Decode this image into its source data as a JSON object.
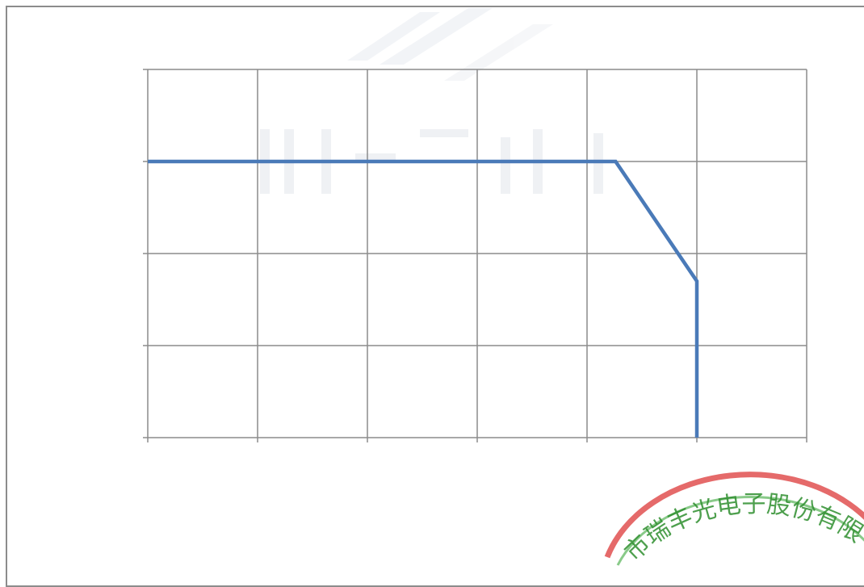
{
  "chart_data": {
    "type": "line",
    "title": "",
    "xlabel": "",
    "ylabel": "",
    "xlim": [
      0,
      6
    ],
    "ylim": [
      0,
      4
    ],
    "x_ticks": [
      0,
      1,
      2,
      3,
      4,
      5,
      6
    ],
    "y_ticks": [
      0,
      1,
      2,
      3,
      4
    ],
    "grid": true,
    "legend": "none",
    "series": [
      {
        "x": [
          0,
          4.26,
          5.0,
          5.0
        ],
        "y": [
          3.0,
          3.0,
          1.7,
          0.0
        ]
      }
    ]
  },
  "colors": {
    "series_line": "#4a7ab8",
    "grid": "#8c8c8c",
    "frame": "#8c8c8c",
    "stamp_red": "#e05050",
    "stamp_green": "#3aa63a",
    "watermark": "#e3e6ec"
  },
  "stamp": {
    "text": "市瑞丰光电子股份有限"
  }
}
